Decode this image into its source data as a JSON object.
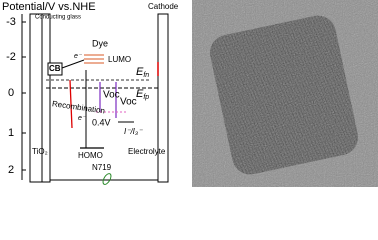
{
  "header": {
    "title": "Potential/V vs.NHE"
  },
  "axis": {
    "ticks": [
      "-3",
      "-2",
      "0",
      "1",
      "2"
    ]
  },
  "labels": {
    "conducting_glass": "Conducting glass",
    "cathode": "Cathode",
    "dye": "Dye",
    "lumo": "LUMO",
    "cb": "CB",
    "electron_top": "e⁻",
    "electron_bottom": "e⁻",
    "efn_main": "E",
    "efn_sub": "fn",
    "efp_main": "E",
    "efp_sub": "fp",
    "recombination": "Recombination",
    "voc_left": "Voc",
    "voc_right": "Voc",
    "delta_v": "0.4V",
    "homo": "HOMO",
    "redox": "I⁻/I₃⁻",
    "dye_name": "N719",
    "tio2": "TiO₂",
    "electrolyte": "Electrolyte"
  }
}
